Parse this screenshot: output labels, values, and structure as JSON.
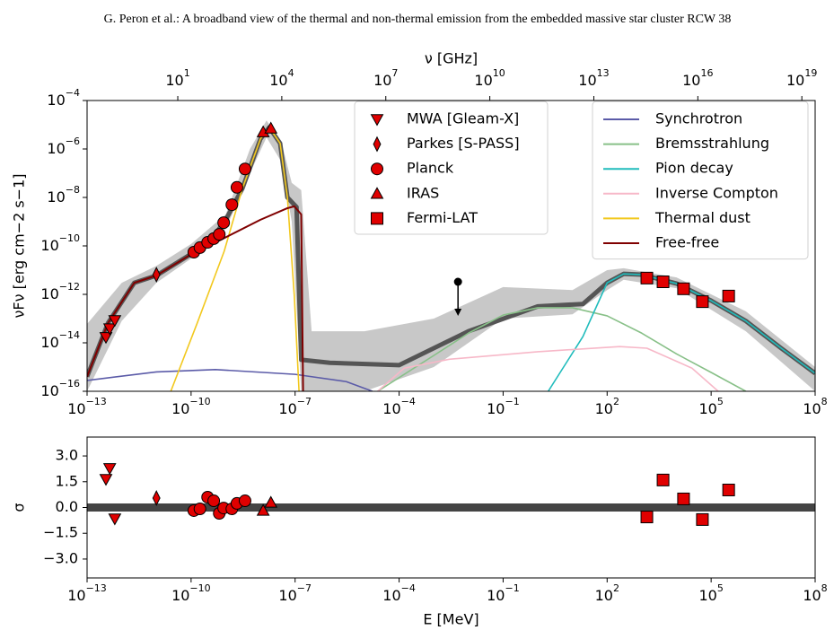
{
  "header": {
    "text": "G. Peron  et al.: A broadband view of the thermal and non-thermal emission from the embedded massive star cluster RCW 38"
  },
  "chart_data": [
    {
      "type": "scatter",
      "log_x": true,
      "log_y": true,
      "x2label": "ν [GHz]",
      "ylabel": "νFν [erg cm−2 s−1]",
      "xlim": [
        1e-13,
        100000000.0
      ],
      "ylim": [
        1e-16,
        0.0001
      ],
      "x2lim": [
        0.0242,
        2.42e+19
      ],
      "xticks": [
        {
          "value": 1e-13,
          "label": "10",
          "exponent": "−13"
        },
        {
          "value": 1e-10,
          "label": "10",
          "exponent": "−10"
        },
        {
          "value": 1e-07,
          "label": "10",
          "exponent": "−7"
        },
        {
          "value": 0.0001,
          "label": "10",
          "exponent": "−4"
        },
        {
          "value": 0.1,
          "label": "10",
          "exponent": "−1"
        },
        {
          "value": 100,
          "label": "10",
          "exponent": "2"
        },
        {
          "value": 100000,
          "label": "10",
          "exponent": "5"
        },
        {
          "value": 100000000.0,
          "label": "10",
          "exponent": "8"
        }
      ],
      "x2ticks": [
        {
          "value": 10,
          "label": "10",
          "exponent": "1"
        },
        {
          "value": 10000.0,
          "label": "10",
          "exponent": "4"
        },
        {
          "value": 10000000.0,
          "label": "10",
          "exponent": "7"
        },
        {
          "value": 10000000000.0,
          "label": "10",
          "exponent": "10"
        },
        {
          "value": 10000000000000.0,
          "label": "10",
          "exponent": "13"
        },
        {
          "value": 1e+16,
          "label": "10",
          "exponent": "16"
        },
        {
          "value": 1e+19,
          "label": "10",
          "exponent": "19"
        }
      ],
      "yticks": [
        {
          "value": 1e-16,
          "label": "10",
          "exponent": "−16"
        },
        {
          "value": 1e-14,
          "label": "10",
          "exponent": "−14"
        },
        {
          "value": 1e-12,
          "label": "10",
          "exponent": "−12"
        },
        {
          "value": 1e-10,
          "label": "10",
          "exponent": "−10"
        },
        {
          "value": 1e-08,
          "label": "10",
          "exponent": "−8"
        },
        {
          "value": 1e-06,
          "label": "10",
          "exponent": "−6"
        },
        {
          "value": 0.0001,
          "label": "10",
          "exponent": "−4"
        }
      ],
      "legend_loc": [
        "upper center",
        "upper right"
      ],
      "series": [
        {
          "name": "MWA [Gleam-X]",
          "marker": "triangle-down",
          "color": "#e00000",
          "x": [
            3.5e-13,
            4.5e-13,
            6.3e-13
          ],
          "values": [
            1.7e-14,
            3.9e-14,
            8.5e-14
          ]
        },
        {
          "name": "Parkes [S-PASS]",
          "marker": "diamond",
          "color": "#e00000",
          "x": [
            1e-11
          ],
          "values": [
            6.5e-12
          ]
        },
        {
          "name": "Planck",
          "marker": "circle",
          "color": "#e00000",
          "x": [
            1.2e-10,
            1.8e-10,
            3e-10,
            4.5e-10,
            6.5e-10,
            8.7e-10,
            1.5e-09,
            2.1e-09,
            3.6e-09
          ],
          "values": [
            5.5e-11,
            8.5e-11,
            1.4e-10,
            2e-10,
            3e-10,
            9.1e-10,
            5e-09,
            2.6e-08,
            1.5e-07
          ]
        },
        {
          "name": "IRAS",
          "marker": "triangle-up",
          "color": "#e00000",
          "x": [
            1.2e-08,
            2e-08
          ],
          "values": [
            5e-06,
            7.1e-06
          ]
        },
        {
          "name": "Fermi-LAT",
          "marker": "square",
          "color": "#e00000",
          "x": [
            1400,
            4100,
            16000,
            56000,
            320000
          ],
          "values": [
            4.7e-12,
            3.3e-12,
            1.7e-12,
            5e-13,
            8.5e-13
          ]
        }
      ],
      "upper_limits": {
        "color": "#000000",
        "x": [
          0.005
        ],
        "values": [
          3.3e-12
        ]
      },
      "band": {
        "color": "#c8c8c8",
        "x": [
          1e-13,
          1e-12,
          1e-11,
          1e-10,
          1e-09,
          5e-09,
          1.5e-08,
          4e-08,
          8e-08,
          1.5e-07,
          3e-07,
          1e-05,
          0.001,
          0.1,
          10,
          100,
          300,
          10000,
          1000000.0,
          100000000.0
        ],
        "upper": [
          6e-14,
          3e-12,
          1.5e-11,
          1.2e-10,
          2e-09,
          1e-06,
          1.5e-05,
          2e-06,
          4e-08,
          2e-08,
          3e-14,
          3e-14,
          1e-13,
          2e-12,
          1.5e-12,
          1e-11,
          1.2e-11,
          5e-12,
          2e-13,
          1e-15
        ],
        "lower": [
          1e-16,
          8e-14,
          3e-12,
          3e-11,
          5e-10,
          1e-07,
          3e-06,
          3e-07,
          1e-09,
          1e-16,
          1e-16,
          1e-16,
          1e-15,
          1e-13,
          1.5e-13,
          1.5e-12,
          4e-12,
          1.8e-12,
          3e-14,
          1e-16
        ]
      },
      "total_model": {
        "color": "#555555",
        "x": [
          1e-13,
          4e-13,
          2.3e-12,
          1e-11,
          8.5e-11,
          4e-10,
          1e-09,
          3e-09,
          1e-08,
          1.8e-08,
          3.7e-08,
          6e-08,
          1.1e-07,
          1.5e-07,
          1e-06,
          0.0001,
          0.01,
          1,
          20,
          100,
          300,
          1000,
          10000,
          100000,
          1000000.0,
          10000000.0,
          100000000.0
        ],
        "values": [
          4e-16,
          6.5e-14,
          3e-12,
          6e-12,
          4e-11,
          2e-10,
          1.2e-09,
          2.3e-08,
          2.6e-06,
          7.8e-06,
          1.7e-06,
          1e-08,
          4e-09,
          2e-15,
          1.5e-15,
          1.2e-15,
          3e-14,
          3.2e-13,
          4e-13,
          3e-12,
          7e-12,
          6.5e-12,
          2.8e-12,
          5.5e-13,
          8e-14,
          6.3e-15,
          5.5e-16
        ]
      },
      "models": [
        {
          "name": "Synchrotron",
          "color": "#5b5ba8",
          "x": [
            1e-13,
            1e-11,
            5e-10,
            1e-07,
            3e-06,
            1.7e-05
          ],
          "values": [
            2.8e-16,
            6.3e-16,
            7.9e-16,
            5e-16,
            2.5e-16,
            1e-16
          ]
        },
        {
          "name": "Bremsstrahlung",
          "color": "#88c088",
          "x": [
            2.4e-05,
            0.001,
            0.01,
            0.1,
            1,
            10,
            100,
            1000,
            10000,
            100000,
            1000000.0
          ],
          "values": [
            1e-16,
            3e-15,
            2.5e-14,
            1.4e-13,
            2.8e-13,
            2.8e-13,
            1.3e-13,
            2.5e-14,
            3.5e-15,
            6e-16,
            1e-16
          ]
        },
        {
          "name": "Pion decay",
          "color": "#20bcbc",
          "x": [
            2,
            20,
            100,
            300,
            1000,
            10000,
            100000,
            1000000.0,
            10000000.0,
            100000000.0
          ],
          "values": [
            1e-16,
            1.8e-14,
            3e-12,
            7e-12,
            6.5e-12,
            2.8e-12,
            5.5e-13,
            8e-14,
            6.3e-15,
            5.5e-16
          ]
        },
        {
          "name": "Inverse Compton",
          "color": "#f7b8c8",
          "x": [
            2.4e-05,
            0.00014,
            0.0028,
            1,
            230,
            1400,
            28000,
            160000
          ],
          "values": [
            1e-16,
            9e-16,
            2.1e-15,
            4.3e-15,
            7e-15,
            6e-15,
            9e-16,
            1e-16
          ]
        },
        {
          "name": "Thermal dust",
          "color": "#f2c81e",
          "x": [
            2.6e-11,
            1.5e-10,
            9e-10,
            3e-09,
            1e-08,
            1.8e-08,
            3.7e-08,
            6e-08,
            9.5e-08,
            1.3e-07
          ],
          "values": [
            1e-16,
            6.5e-14,
            6e-11,
            2.3e-08,
            2.6e-06,
            7.8e-06,
            1.7e-06,
            1e-08,
            8.5e-13,
            1e-16
          ]
        },
        {
          "name": "Free-free",
          "color": "#800000",
          "x": [
            1e-13,
            4e-13,
            2.3e-12,
            1e-11,
            8.5e-11,
            9e-10,
            1e-08,
            6e-08,
            9.5e-08,
            1.5e-07,
            1.7e-07
          ],
          "values": [
            4e-16,
            6.5e-14,
            3e-12,
            6e-12,
            3.9e-11,
            2.1e-10,
            1.2e-09,
            3.6e-09,
            4.3e-09,
            2e-09,
            1e-16
          ]
        }
      ]
    },
    {
      "type": "scatter",
      "log_x": true,
      "log_y": false,
      "xlabel": "E [MeV]",
      "ylabel": "σ",
      "xlim": [
        1e-13,
        100000000.0
      ],
      "ylim": [
        -4.1,
        4.1
      ],
      "xticks": [
        {
          "value": 1e-13,
          "label": "10",
          "exponent": "−13"
        },
        {
          "value": 1e-10,
          "label": "10",
          "exponent": "−10"
        },
        {
          "value": 1e-07,
          "label": "10",
          "exponent": "−7"
        },
        {
          "value": 0.0001,
          "label": "10",
          "exponent": "−4"
        },
        {
          "value": 0.1,
          "label": "10",
          "exponent": "−1"
        },
        {
          "value": 100,
          "label": "10",
          "exponent": "2"
        },
        {
          "value": 100000,
          "label": "10",
          "exponent": "5"
        },
        {
          "value": 100000000.0,
          "label": "10",
          "exponent": "8"
        }
      ],
      "yticks": [
        {
          "value": -3,
          "label": "−3.0"
        },
        {
          "value": -1.5,
          "label": "−1.5"
        },
        {
          "value": 0,
          "label": "0.0"
        },
        1.5,
        {
          "value": 3,
          "label": "3.0"
        }
      ],
      "hline": {
        "value": 0,
        "color": "#444444"
      },
      "series": [
        {
          "marker": "triangle-down",
          "color": "#e00000",
          "x": [
            3.5e-13,
            4.5e-13,
            6.3e-13
          ],
          "values": [
            1.65,
            2.28,
            -0.65
          ]
        },
        {
          "marker": "diamond",
          "color": "#e00000",
          "x": [
            1e-11
          ],
          "values": [
            0.55
          ]
        },
        {
          "marker": "circle",
          "color": "#e00000",
          "x": [
            1.2e-10,
            1.8e-10,
            3e-10,
            4.5e-10,
            6.5e-10,
            8.7e-10,
            1.5e-09,
            2.1e-09,
            3.6e-09
          ],
          "values": [
            -0.18,
            -0.08,
            0.6,
            0.39,
            -0.34,
            -0.03,
            -0.08,
            0.24,
            0.39
          ]
        },
        {
          "marker": "triangle-up",
          "color": "#e00000",
          "x": [
            1.2e-08,
            2e-08
          ],
          "values": [
            -0.18,
            0.29
          ]
        },
        {
          "marker": "square",
          "color": "#e00000",
          "x": [
            1400,
            4100,
            16000,
            56000,
            320000
          ],
          "values": [
            -0.55,
            1.6,
            0.5,
            -0.7,
            1.02
          ]
        }
      ]
    }
  ]
}
